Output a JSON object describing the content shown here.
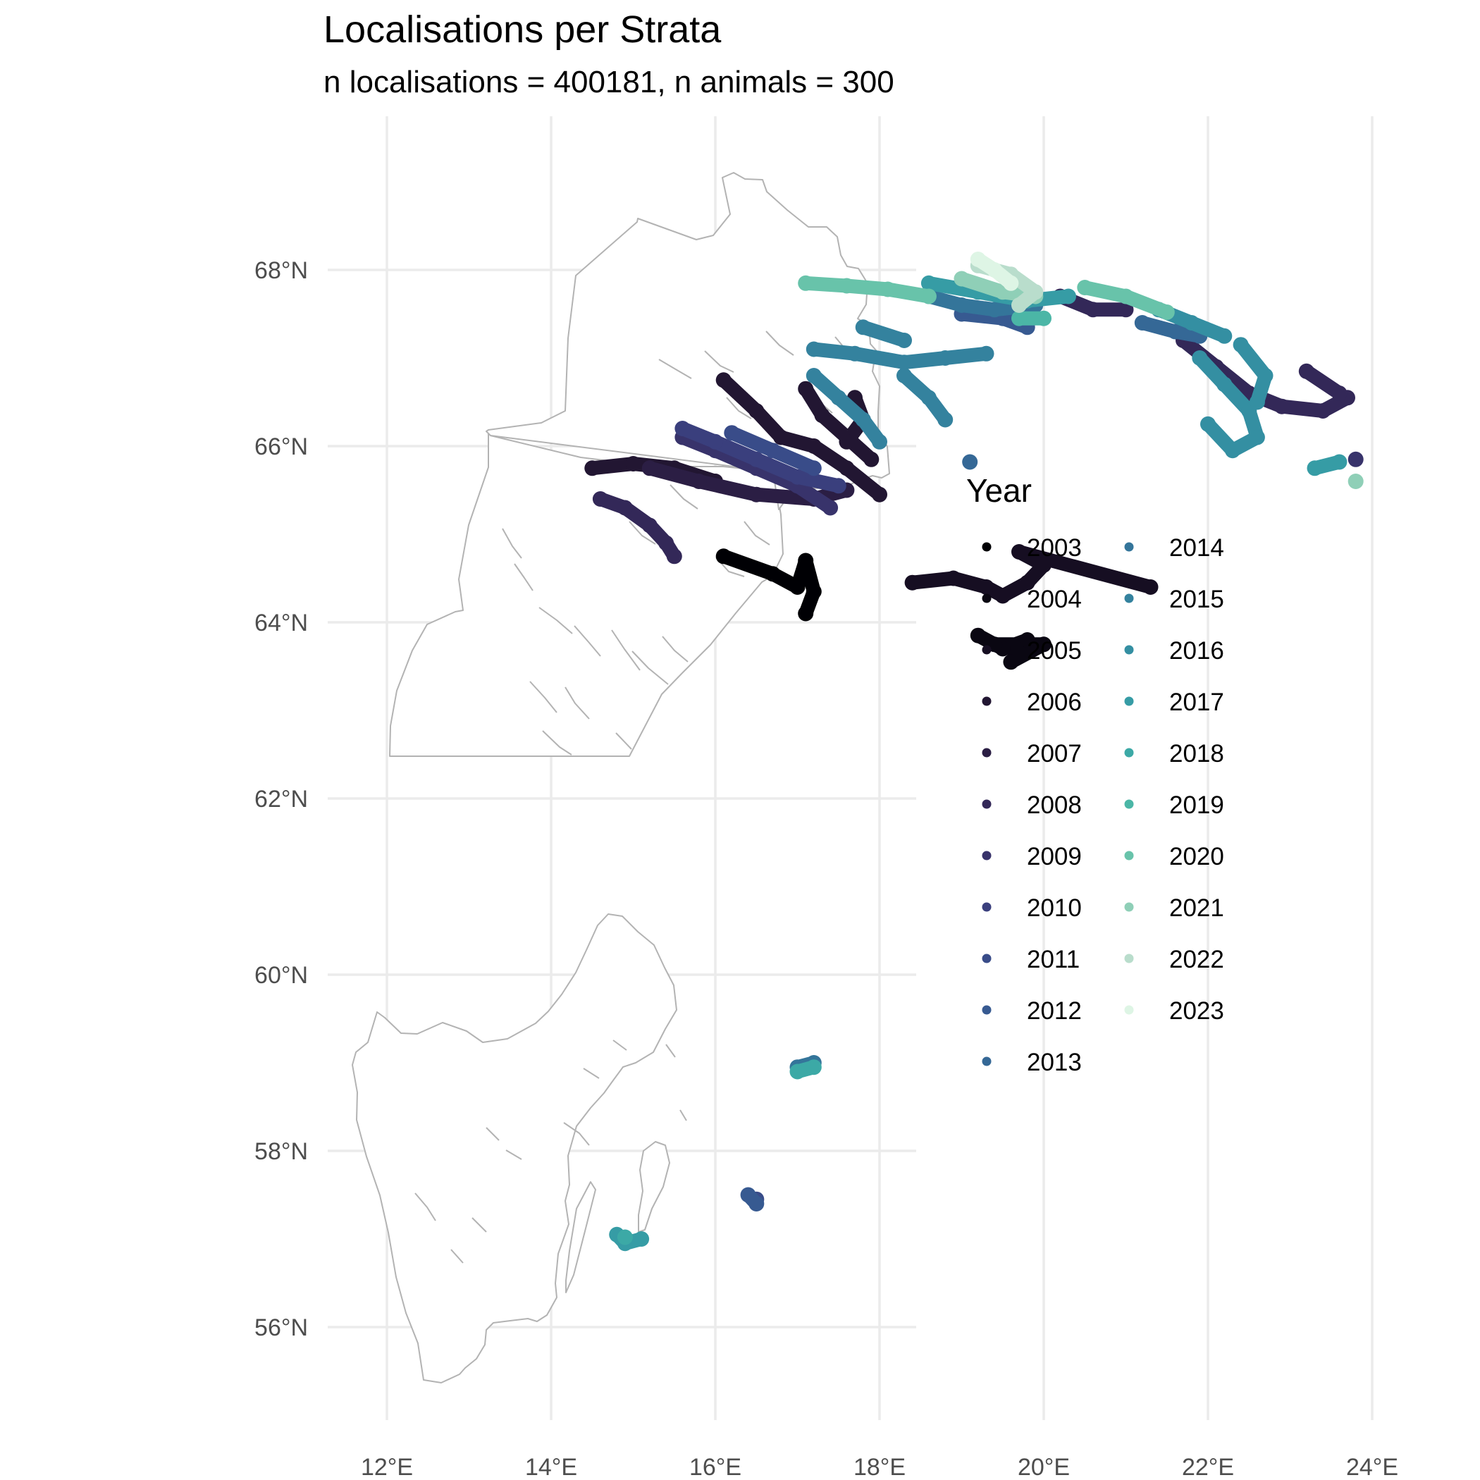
{
  "chart_data": {
    "type": "scatter",
    "title": "Localisations per Strata",
    "subtitle": "n localisations = 400181, n animals = 300",
    "x_axis": {
      "ticks": [
        12,
        14,
        16,
        18,
        20,
        22,
        24
      ],
      "tick_labels": [
        "12°E",
        "14°E",
        "16°E",
        "18°E",
        "20°E",
        "22°E",
        "24°E"
      ],
      "range": [
        10.5,
        24.9
      ]
    },
    "y_axis": {
      "ticks": [
        56,
        58,
        60,
        62,
        64,
        66,
        68
      ],
      "tick_labels": [
        "56°N",
        "58°N",
        "60°N",
        "62°N",
        "64°N",
        "66°N",
        "68°N"
      ],
      "range": [
        54.9,
        69.6
      ]
    },
    "grid": true,
    "legend": {
      "title": "Year",
      "placement": "right",
      "entries": [
        {
          "label": "2003",
          "color": "#000004"
        },
        {
          "label": "2004",
          "color": "#0a0712"
        },
        {
          "label": "2005",
          "color": "#160e22"
        },
        {
          "label": "2006",
          "color": "#221632"
        },
        {
          "label": "2007",
          "color": "#2b1e44"
        },
        {
          "label": "2008",
          "color": "#332858"
        },
        {
          "label": "2009",
          "color": "#38336b"
        },
        {
          "label": "2010",
          "color": "#3a3f7d"
        },
        {
          "label": "2011",
          "color": "#394c89"
        },
        {
          "label": "2012",
          "color": "#375a91"
        },
        {
          "label": "2013",
          "color": "#356896"
        },
        {
          "label": "2014",
          "color": "#34759a"
        },
        {
          "label": "2015",
          "color": "#34829e"
        },
        {
          "label": "2016",
          "color": "#348fa2"
        },
        {
          "label": "2017",
          "color": "#369ca5"
        },
        {
          "label": "2018",
          "color": "#3ca9a6"
        },
        {
          "label": "2019",
          "color": "#4bb6a6"
        },
        {
          "label": "2020",
          "color": "#68c3aa"
        },
        {
          "label": "2021",
          "color": "#8fcfb7"
        },
        {
          "label": "2022",
          "color": "#b9ddcc"
        },
        {
          "label": "2023",
          "color": "#def5e5"
        }
      ]
    },
    "tracks": [
      {
        "year": "2003",
        "points": [
          [
            16.1,
            64.75
          ],
          [
            16.7,
            64.55
          ],
          [
            17.0,
            64.4
          ],
          [
            17.1,
            64.7
          ],
          [
            17.2,
            64.35
          ],
          [
            17.1,
            64.1
          ]
        ]
      },
      {
        "year": "2004",
        "points": [
          [
            19.2,
            63.85
          ],
          [
            19.5,
            63.7
          ],
          [
            19.8,
            63.8
          ],
          [
            19.6,
            63.55
          ],
          [
            20.0,
            63.75
          ],
          [
            19.4,
            63.75
          ]
        ]
      },
      {
        "year": "2005",
        "points": [
          [
            18.4,
            64.45
          ],
          [
            18.9,
            64.5
          ],
          [
            19.3,
            64.4
          ],
          [
            19.5,
            64.3
          ],
          [
            19.8,
            64.45
          ],
          [
            20.0,
            64.65
          ],
          [
            19.7,
            64.8
          ],
          [
            21.3,
            64.4
          ]
        ]
      },
      {
        "year": "2006",
        "points": [
          [
            16.1,
            66.75
          ],
          [
            16.5,
            66.4
          ],
          [
            16.8,
            66.1
          ],
          [
            17.2,
            66.0
          ],
          [
            17.6,
            65.75
          ],
          [
            18.0,
            65.45
          ]
        ]
      },
      {
        "year": "2006",
        "points": [
          [
            17.1,
            66.65
          ],
          [
            17.3,
            66.35
          ],
          [
            17.6,
            66.1
          ],
          [
            17.9,
            65.85
          ]
        ]
      },
      {
        "year": "2006",
        "points": [
          [
            17.7,
            66.55
          ],
          [
            17.8,
            66.3
          ],
          [
            17.6,
            66.05
          ]
        ]
      },
      {
        "year": "2006",
        "points": [
          [
            14.5,
            65.75
          ],
          [
            15.0,
            65.8
          ],
          [
            15.5,
            65.75
          ],
          [
            16.0,
            65.6
          ]
        ]
      },
      {
        "year": "2007",
        "points": [
          [
            15.2,
            65.75
          ],
          [
            15.8,
            65.6
          ],
          [
            16.5,
            65.45
          ],
          [
            17.2,
            65.4
          ],
          [
            17.6,
            65.5
          ]
        ]
      },
      {
        "year": "2008",
        "points": [
          [
            14.6,
            65.4
          ],
          [
            14.9,
            65.3
          ],
          [
            15.2,
            65.1
          ],
          [
            15.4,
            64.9
          ],
          [
            15.5,
            64.75
          ]
        ]
      },
      {
        "year": "2008",
        "points": [
          [
            21.7,
            67.2
          ],
          [
            22.1,
            66.9
          ],
          [
            22.5,
            66.6
          ],
          [
            22.9,
            66.45
          ],
          [
            23.4,
            66.4
          ],
          [
            23.7,
            66.55
          ]
        ]
      },
      {
        "year": "2008",
        "points": [
          [
            23.2,
            66.85
          ],
          [
            23.6,
            66.6
          ]
        ]
      },
      {
        "year": "2008",
        "points": [
          [
            20.2,
            67.7
          ],
          [
            20.6,
            67.55
          ],
          [
            21.0,
            67.55
          ]
        ]
      },
      {
        "year": "2009",
        "points": [
          [
            15.6,
            66.1
          ],
          [
            16.0,
            65.95
          ],
          [
            16.5,
            65.75
          ],
          [
            17.0,
            65.55
          ],
          [
            17.4,
            65.3
          ]
        ]
      },
      {
        "year": "2009",
        "points": [
          [
            23.8,
            65.85
          ]
        ]
      },
      {
        "year": "2010",
        "points": [
          [
            15.6,
            66.2
          ],
          [
            16.0,
            66.05
          ],
          [
            16.5,
            65.85
          ],
          [
            17.0,
            65.65
          ],
          [
            17.5,
            65.55
          ]
        ]
      },
      {
        "year": "2011",
        "points": [
          [
            16.2,
            66.15
          ],
          [
            16.7,
            65.95
          ],
          [
            17.2,
            65.75
          ]
        ]
      },
      {
        "year": "2011",
        "points": [
          [
            16.5,
            57.45
          ]
        ]
      },
      {
        "year": "2012",
        "points": [
          [
            16.4,
            57.5
          ],
          [
            16.5,
            57.4
          ]
        ]
      },
      {
        "year": "2012",
        "points": [
          [
            19.0,
            67.5
          ],
          [
            19.5,
            67.45
          ],
          [
            19.8,
            67.35
          ]
        ]
      },
      {
        "year": "2013",
        "points": [
          [
            19.1,
            65.82
          ]
        ]
      },
      {
        "year": "2013",
        "points": [
          [
            21.2,
            67.4
          ],
          [
            21.6,
            67.3
          ],
          [
            21.9,
            67.25
          ]
        ]
      },
      {
        "year": "2014",
        "points": [
          [
            18.6,
            67.7
          ],
          [
            19.0,
            67.6
          ],
          [
            19.4,
            67.55
          ],
          [
            19.9,
            67.6
          ]
        ]
      },
      {
        "year": "2014",
        "points": [
          [
            17.2,
            59.0
          ],
          [
            17.0,
            58.95
          ]
        ]
      },
      {
        "year": "2015",
        "points": [
          [
            17.2,
            67.1
          ],
          [
            17.7,
            67.05
          ],
          [
            18.3,
            66.95
          ],
          [
            18.8,
            67.0
          ],
          [
            19.3,
            67.05
          ]
        ]
      },
      {
        "year": "2015",
        "points": [
          [
            18.3,
            66.8
          ],
          [
            18.6,
            66.55
          ],
          [
            18.8,
            66.3
          ]
        ]
      },
      {
        "year": "2015",
        "points": [
          [
            17.2,
            66.8
          ],
          [
            17.5,
            66.55
          ],
          [
            17.8,
            66.3
          ],
          [
            18.0,
            66.05
          ]
        ]
      },
      {
        "year": "2015",
        "points": [
          [
            17.8,
            67.35
          ],
          [
            18.3,
            67.2
          ]
        ]
      },
      {
        "year": "2016",
        "points": [
          [
            21.9,
            67.0
          ],
          [
            22.2,
            66.7
          ],
          [
            22.5,
            66.4
          ],
          [
            22.6,
            66.1
          ],
          [
            22.3,
            65.95
          ],
          [
            22.0,
            66.25
          ]
        ]
      },
      {
        "year": "2016",
        "points": [
          [
            21.4,
            67.55
          ],
          [
            21.8,
            67.4
          ],
          [
            22.2,
            67.25
          ]
        ]
      },
      {
        "year": "2016",
        "points": [
          [
            22.4,
            67.15
          ],
          [
            22.7,
            66.8
          ],
          [
            22.6,
            66.5
          ]
        ]
      },
      {
        "year": "2017",
        "points": [
          [
            14.8,
            57.05
          ],
          [
            14.9,
            56.95
          ],
          [
            15.1,
            57.0
          ]
        ]
      },
      {
        "year": "2017",
        "points": [
          [
            23.3,
            65.75
          ],
          [
            23.6,
            65.82
          ]
        ]
      },
      {
        "year": "2017",
        "points": [
          [
            18.6,
            67.85
          ],
          [
            19.2,
            67.75
          ],
          [
            19.8,
            67.65
          ],
          [
            20.3,
            67.7
          ]
        ]
      },
      {
        "year": "2018",
        "points": [
          [
            17.0,
            58.9
          ],
          [
            17.2,
            58.95
          ]
        ]
      },
      {
        "year": "2018",
        "points": [
          [
            14.9,
            57.02
          ]
        ]
      },
      {
        "year": "2019",
        "points": [
          [
            19.7,
            67.45
          ],
          [
            20.0,
            67.45
          ]
        ]
      },
      {
        "year": "2020",
        "points": [
          [
            17.1,
            67.85
          ],
          [
            17.6,
            67.82
          ],
          [
            18.1,
            67.78
          ],
          [
            18.6,
            67.7
          ]
        ]
      },
      {
        "year": "2020",
        "points": [
          [
            20.5,
            67.8
          ],
          [
            21.0,
            67.7
          ],
          [
            21.5,
            67.52
          ]
        ]
      },
      {
        "year": "2021",
        "points": [
          [
            23.8,
            65.6
          ]
        ]
      },
      {
        "year": "2021",
        "points": [
          [
            19.0,
            67.9
          ],
          [
            19.5,
            67.75
          ],
          [
            19.9,
            67.7
          ]
        ]
      },
      {
        "year": "2022",
        "points": [
          [
            19.2,
            68.05
          ],
          [
            19.6,
            67.95
          ],
          [
            19.9,
            67.75
          ],
          [
            19.7,
            67.6
          ]
        ]
      },
      {
        "year": "2023",
        "points": [
          [
            19.2,
            68.12
          ],
          [
            19.4,
            68.0
          ],
          [
            19.6,
            67.85
          ]
        ]
      }
    ]
  }
}
